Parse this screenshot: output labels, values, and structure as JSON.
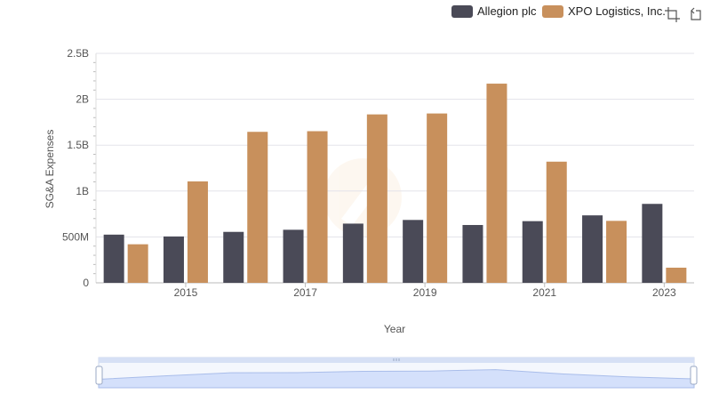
{
  "chart_data": {
    "type": "bar",
    "x": [
      2014,
      2015,
      2016,
      2017,
      2018,
      2019,
      2020,
      2021,
      2022,
      2023
    ],
    "x_tick_labels": [
      "2015",
      "2017",
      "2019",
      "2021",
      "2023"
    ],
    "xlabel": "Year",
    "ylabel": "SG&A Expenses",
    "ylim": [
      0,
      2500000000
    ],
    "y_tick_labels": [
      "0",
      "500M",
      "1B",
      "1.5B",
      "2B",
      "2.5B"
    ],
    "grid": true,
    "legend_position": "top-right",
    "series": [
      {
        "name": "Allegion plc",
        "color": "#4a4a57",
        "values": [
          525000000,
          505000000,
          555000000,
          578000000,
          645000000,
          685000000,
          630000000,
          672000000,
          735000000,
          860000000
        ]
      },
      {
        "name": "XPO Logistics, Inc.",
        "color": "#c8905c",
        "values": [
          420000000,
          1105000000,
          1645000000,
          1652000000,
          1835000000,
          1845000000,
          2170000000,
          1320000000,
          675000000,
          165000000
        ]
      }
    ]
  },
  "toolbar": {
    "icons": [
      "crop-icon",
      "reset-icon"
    ]
  }
}
